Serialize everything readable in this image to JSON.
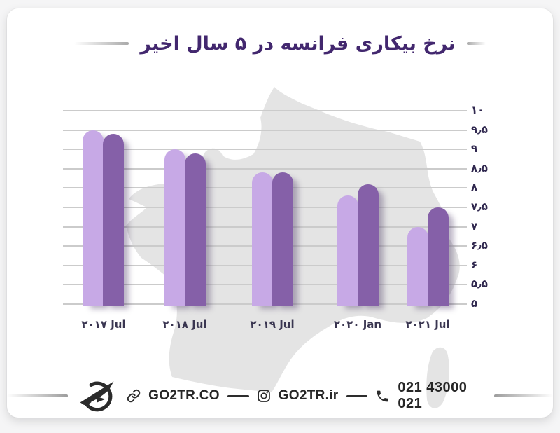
{
  "title": "نرخ بیکاری فرانسه در ۵ سال اخیر",
  "chart_data": {
    "type": "bar",
    "title": "نرخ بیکاری فرانسه در ۵ سال اخیر",
    "categories": [
      "۲۰۱۷ Jul",
      "۲۰۱۸ Jul",
      "۲۰۱۹ Jul",
      "۲۰۲۰ Jan",
      "۲۰۲۱ Jul"
    ],
    "series": [
      {
        "name": "series-light-purple",
        "color": "#c7a9e6",
        "values": [
          9.5,
          9.0,
          8.4,
          7.8,
          7.0
        ]
      },
      {
        "name": "series-dark-purple",
        "color": "#8560a8",
        "values": [
          9.4,
          8.9,
          8.4,
          8.1,
          7.5
        ]
      }
    ],
    "ylim": [
      5,
      10
    ],
    "ytick_step": 0.5,
    "ytick_labels": [
      "۱۰",
      "۹٫۵",
      "۹",
      "۸٫۵",
      "۸",
      "۷٫۵",
      "۷",
      "۶٫۵",
      "۶",
      "۵٫۵",
      "۵"
    ],
    "yaxis_side": "right",
    "grid": true,
    "legend": "none",
    "background_motif": "france-map-silhouette"
  },
  "footer": {
    "website_label": "GO2TR.CO",
    "instagram_label": "GO2TR.ir",
    "phone_label": "021 43000 021",
    "icons": {
      "website": "link-icon",
      "instagram": "instagram-icon",
      "phone": "phone-icon",
      "brand": "go2tr-plane-logo"
    }
  },
  "colors": {
    "title": "#42276e",
    "bar_light": "#c7a9e6",
    "bar_dark": "#8560a8",
    "grid": "#cbcbcb",
    "map": "#e4e4e4",
    "ytick_text": "#30284f",
    "xtick_text": "#3a3651",
    "footer_text": "#262626"
  }
}
